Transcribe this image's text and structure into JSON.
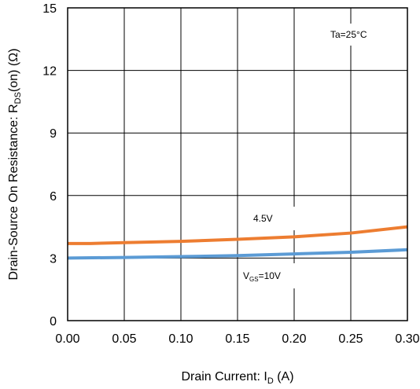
{
  "chart_data": {
    "type": "line",
    "xlabel": "Drain Current: I_D (A)",
    "xlabel_parts": {
      "main": "Drain Current: I",
      "sub": "D",
      "unit": " (A)"
    },
    "ylabel": "Drain-Source On Resistance: R_DS(on) (Ω)",
    "ylabel_parts": {
      "main": "Drain-Source On Resistance: R",
      "sub": "DS",
      "unit": "(on) (Ω)"
    },
    "xlim": [
      0,
      0.3
    ],
    "ylim": [
      0,
      15
    ],
    "x_ticks": [
      "0.00",
      "0.05",
      "0.10",
      "0.15",
      "0.20",
      "0.25",
      "0.30"
    ],
    "y_ticks": [
      "0",
      "3",
      "6",
      "9",
      "12",
      "15"
    ],
    "grid": true,
    "annotations": {
      "temperature": "Ta=25°C",
      "vgs45": "4.5V",
      "vgs10_main": "V",
      "vgs10_sub": "GS",
      "vgs10_tail": "=10V"
    },
    "series": [
      {
        "name": "4.5V",
        "color": "#ED7D31",
        "x": [
          0.0,
          0.02,
          0.05,
          0.1,
          0.15,
          0.2,
          0.25,
          0.3
        ],
        "y": [
          3.7,
          3.7,
          3.74,
          3.8,
          3.9,
          4.02,
          4.2,
          4.5
        ]
      },
      {
        "name": "VGS=10V",
        "color": "#5B9BD5",
        "x": [
          0.0,
          0.05,
          0.1,
          0.15,
          0.2,
          0.25,
          0.3
        ],
        "y": [
          3.0,
          3.03,
          3.07,
          3.12,
          3.2,
          3.28,
          3.4
        ]
      }
    ]
  }
}
